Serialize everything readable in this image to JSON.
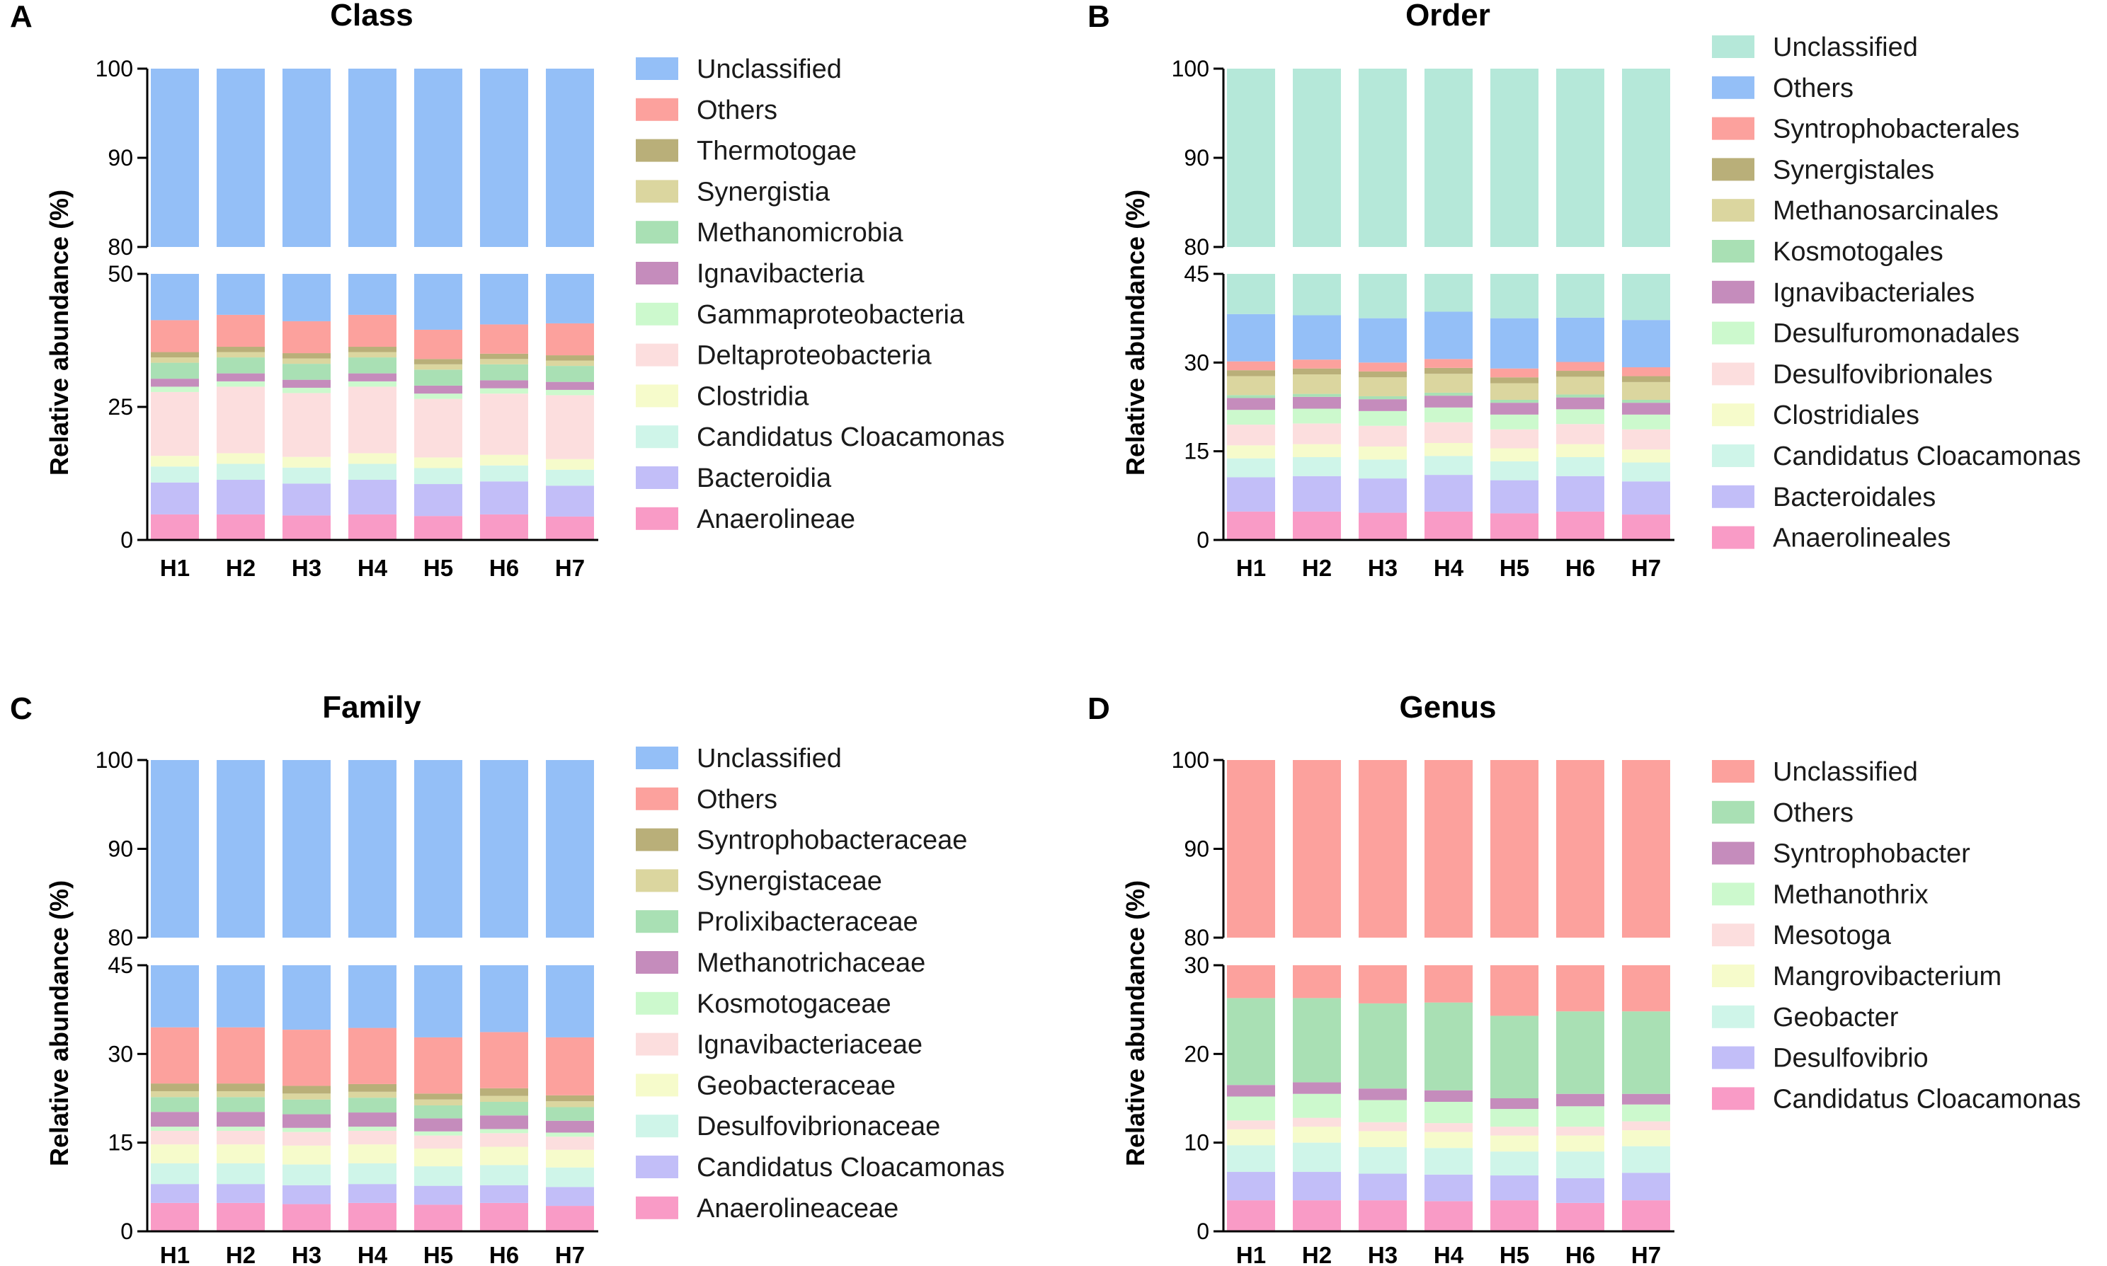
{
  "chart_data": [
    {
      "type": "bar",
      "stacked": true,
      "panel_label": "A",
      "title": "Class",
      "xlabel": "",
      "ylabel": "Relative abundance (%)",
      "broken_axis": true,
      "lower_range": [
        0,
        50
      ],
      "lower_ticks": [
        0,
        25,
        50
      ],
      "upper_range": [
        80,
        100
      ],
      "upper_ticks": [
        80,
        90,
        100
      ],
      "categories": [
        "H1",
        "H2",
        "H3",
        "H4",
        "H5",
        "H6",
        "H7"
      ],
      "series": [
        {
          "name": "Anaerolineae",
          "color": "#f99bc6",
          "values": [
            4.8,
            4.8,
            4.6,
            4.8,
            4.5,
            4.8,
            4.4
          ]
        },
        {
          "name": "Bacteroidia",
          "color": "#c2bef8",
          "values": [
            6.0,
            6.5,
            6.0,
            6.5,
            6.0,
            6.2,
            5.8
          ]
        },
        {
          "name": "Candidatus Cloacamonas",
          "color": "#cff5e9",
          "values": [
            3.0,
            3.0,
            3.0,
            3.0,
            3.0,
            3.0,
            3.0
          ]
        },
        {
          "name": "Clostridia",
          "color": "#f6fbcb",
          "values": [
            2.0,
            2.0,
            2.0,
            2.0,
            2.0,
            2.0,
            2.0
          ]
        },
        {
          "name": "Deltaproteobacteria",
          "color": "#fcdede",
          "values": [
            12.0,
            12.5,
            12.0,
            12.5,
            11.0,
            11.5,
            12.0
          ]
        },
        {
          "name": "Gammaproteobacteria",
          "color": "#ccf9cd",
          "values": [
            1.0,
            1.0,
            1.0,
            1.0,
            1.0,
            1.0,
            1.0
          ]
        },
        {
          "name": "Ignavibacteria",
          "color": "#c58cbc",
          "values": [
            1.5,
            1.5,
            1.5,
            1.5,
            1.5,
            1.5,
            1.5
          ]
        },
        {
          "name": "Methanomicrobia",
          "color": "#a9e0b4",
          "values": [
            3.0,
            3.0,
            3.0,
            3.0,
            3.0,
            3.0,
            3.0
          ]
        },
        {
          "name": "Synergistia",
          "color": "#dbd69f",
          "values": [
            1.0,
            1.0,
            1.0,
            1.0,
            1.0,
            1.0,
            1.0
          ]
        },
        {
          "name": "Thermotogae",
          "color": "#b9af79",
          "values": [
            1.0,
            1.0,
            1.0,
            1.0,
            1.0,
            1.0,
            1.0
          ]
        },
        {
          "name": "Others",
          "color": "#fca19d",
          "values": [
            6.0,
            6.0,
            6.0,
            6.0,
            5.5,
            5.5,
            6.0
          ]
        },
        {
          "name": "Unclassified",
          "color": "#94bff7",
          "values": [
            58.7,
            57.7,
            58.9,
            57.7,
            60.5,
            60.0,
            60.3
          ]
        }
      ],
      "legend_order": [
        "Unclassified",
        "Others",
        "Thermotogae",
        "Synergistia",
        "Methanomicrobia",
        "Ignavibacteria",
        "Gammaproteobacteria",
        "Deltaproteobacteria",
        "Clostridia",
        "Candidatus Cloacamonas",
        "Bacteroidia",
        "Anaerolineae"
      ],
      "legend_position": "right"
    },
    {
      "type": "bar",
      "stacked": true,
      "panel_label": "B",
      "title": "Order",
      "xlabel": "",
      "ylabel": "Relative abundance (%)",
      "broken_axis": true,
      "lower_range": [
        0,
        45
      ],
      "lower_ticks": [
        0,
        15,
        30,
        45
      ],
      "upper_range": [
        80,
        100
      ],
      "upper_ticks": [
        80,
        90,
        100
      ],
      "categories": [
        "H1",
        "H2",
        "H3",
        "H4",
        "H5",
        "H6",
        "H7"
      ],
      "series": [
        {
          "name": "Anaerolineales",
          "color": "#f99bc6",
          "values": [
            4.8,
            4.8,
            4.6,
            4.8,
            4.5,
            4.8,
            4.3
          ]
        },
        {
          "name": "Bacteroidales",
          "color": "#c2bef8",
          "values": [
            5.8,
            6.0,
            5.8,
            6.2,
            5.6,
            6.0,
            5.6
          ]
        },
        {
          "name": "Candidatus Cloacamonas",
          "color": "#cff5e9",
          "values": [
            3.2,
            3.2,
            3.2,
            3.2,
            3.2,
            3.2,
            3.2
          ]
        },
        {
          "name": "Clostridiales",
          "color": "#f6fbcb",
          "values": [
            2.2,
            2.2,
            2.2,
            2.2,
            2.2,
            2.2,
            2.2
          ]
        },
        {
          "name": "Desulfovibrionales",
          "color": "#fcdede",
          "values": [
            3.5,
            3.5,
            3.5,
            3.5,
            3.2,
            3.4,
            3.4
          ]
        },
        {
          "name": "Desulfuromonadales",
          "color": "#ccf9cd",
          "values": [
            2.5,
            2.5,
            2.5,
            2.5,
            2.5,
            2.5,
            2.5
          ]
        },
        {
          "name": "Ignavibacteriales",
          "color": "#c58cbc",
          "values": [
            2.0,
            2.0,
            2.0,
            2.0,
            2.0,
            2.0,
            2.0
          ]
        },
        {
          "name": "Kosmotogales",
          "color": "#a9e0b4",
          "values": [
            0.5,
            0.5,
            0.5,
            0.5,
            0.5,
            0.5,
            0.5
          ]
        },
        {
          "name": "Methanosarcinales",
          "color": "#dbd69f",
          "values": [
            3.2,
            3.3,
            3.2,
            3.2,
            2.8,
            3.0,
            3.0
          ]
        },
        {
          "name": "Synergistales",
          "color": "#b9af79",
          "values": [
            1.0,
            1.0,
            1.0,
            1.0,
            1.0,
            1.0,
            1.0
          ]
        },
        {
          "name": "Syntrophobacterales",
          "color": "#fca19d",
          "values": [
            1.5,
            1.5,
            1.5,
            1.5,
            1.5,
            1.5,
            1.5
          ]
        },
        {
          "name": "Others",
          "color": "#94bff7",
          "values": [
            8.0,
            7.5,
            7.5,
            8.0,
            8.5,
            7.5,
            8.0
          ]
        },
        {
          "name": "Unclassified",
          "color": "#b5e8d9",
          "values": [
            61.8,
            62.0,
            62.6,
            61.4,
            62.5,
            62.4,
            62.8
          ]
        }
      ],
      "legend_order": [
        "Unclassified",
        "Others",
        "Syntrophobacterales",
        "Synergistales",
        "Methanosarcinales",
        "Kosmotogales",
        "Ignavibacteriales",
        "Desulfuromonadales",
        "Desulfovibrionales",
        "Clostridiales",
        "Candidatus Cloacamonas",
        "Bacteroidales",
        "Anaerolineales"
      ],
      "legend_position": "right"
    },
    {
      "type": "bar",
      "stacked": true,
      "panel_label": "C",
      "title": "Family",
      "xlabel": "",
      "ylabel": "Relative abundance (%)",
      "broken_axis": true,
      "lower_range": [
        0,
        45
      ],
      "lower_ticks": [
        0,
        15,
        30,
        45
      ],
      "upper_range": [
        80,
        100
      ],
      "upper_ticks": [
        80,
        90,
        100
      ],
      "categories": [
        "H1",
        "H2",
        "H3",
        "H4",
        "H5",
        "H6",
        "H7"
      ],
      "series": [
        {
          "name": "Anaerolineaceae",
          "color": "#f99bc6",
          "values": [
            4.8,
            4.8,
            4.6,
            4.8,
            4.5,
            4.8,
            4.3
          ]
        },
        {
          "name": "Candidatus Cloacamonas",
          "color": "#c2bef8",
          "values": [
            3.2,
            3.2,
            3.2,
            3.2,
            3.2,
            3.0,
            3.2
          ]
        },
        {
          "name": "Desulfovibrionaceae",
          "color": "#cff5e9",
          "values": [
            3.5,
            3.5,
            3.5,
            3.5,
            3.3,
            3.4,
            3.3
          ]
        },
        {
          "name": "Geobacteraceae",
          "color": "#f6fbcb",
          "values": [
            3.2,
            3.2,
            3.2,
            3.2,
            3.0,
            3.1,
            3.0
          ]
        },
        {
          "name": "Ignavibacteriaceae",
          "color": "#fcdede",
          "values": [
            2.3,
            2.3,
            2.3,
            2.3,
            2.2,
            2.3,
            2.2
          ]
        },
        {
          "name": "Kosmotogaceae",
          "color": "#ccf9cd",
          "values": [
            0.7,
            0.7,
            0.7,
            0.7,
            0.7,
            0.7,
            0.7
          ]
        },
        {
          "name": "Methanotrichaceae",
          "color": "#c58cbc",
          "values": [
            2.5,
            2.5,
            2.3,
            2.4,
            2.2,
            2.3,
            2.0
          ]
        },
        {
          "name": "Prolixibacteraceae",
          "color": "#a9e0b4",
          "values": [
            2.5,
            2.5,
            2.5,
            2.5,
            2.2,
            2.3,
            2.3
          ]
        },
        {
          "name": "Synergistaceae",
          "color": "#dbd69f",
          "values": [
            1.0,
            1.0,
            1.0,
            1.0,
            1.0,
            1.0,
            1.0
          ]
        },
        {
          "name": "Syntrophobacteraceae",
          "color": "#b9af79",
          "values": [
            1.3,
            1.3,
            1.3,
            1.3,
            1.0,
            1.3,
            1.0
          ]
        },
        {
          "name": "Others",
          "color": "#fca19d",
          "values": [
            9.5,
            9.5,
            9.5,
            9.5,
            9.5,
            9.5,
            9.8
          ]
        },
        {
          "name": "Unclassified",
          "color": "#94bff7",
          "values": [
            65.5,
            65.5,
            65.9,
            65.6,
            67.2,
            66.3,
            67.2
          ]
        }
      ],
      "legend_order": [
        "Unclassified",
        "Others",
        "Syntrophobacteraceae",
        "Synergistaceae",
        "Prolixibacteraceae",
        "Methanotrichaceae",
        "Kosmotogaceae",
        "Ignavibacteriaceae",
        "Geobacteraceae",
        "Desulfovibrionaceae",
        "Candidatus Cloacamonas",
        "Anaerolineaceae"
      ],
      "legend_position": "right"
    },
    {
      "type": "bar",
      "stacked": true,
      "panel_label": "D",
      "title": "Genus",
      "xlabel": "",
      "ylabel": "Relative abundance (%)",
      "broken_axis": true,
      "lower_range": [
        0,
        30
      ],
      "lower_ticks": [
        0,
        10,
        20,
        30
      ],
      "upper_range": [
        80,
        100
      ],
      "upper_ticks": [
        80,
        90,
        100
      ],
      "categories": [
        "H1",
        "H2",
        "H3",
        "H4",
        "H5",
        "H6",
        "H7"
      ],
      "series": [
        {
          "name": "Candidatus Cloacamonas",
          "color": "#f99bc6",
          "values": [
            3.5,
            3.5,
            3.5,
            3.4,
            3.5,
            3.2,
            3.5
          ]
        },
        {
          "name": "Desulfovibrio",
          "color": "#c2bef8",
          "values": [
            3.2,
            3.2,
            3.0,
            3.0,
            2.8,
            2.8,
            3.1
          ]
        },
        {
          "name": "Geobacter",
          "color": "#cff5e9",
          "values": [
            3.0,
            3.3,
            3.0,
            3.0,
            2.7,
            3.0,
            3.0
          ]
        },
        {
          "name": "Mangrovibacterium",
          "color": "#f6fbcb",
          "values": [
            1.8,
            1.8,
            1.8,
            1.8,
            1.8,
            1.8,
            1.8
          ]
        },
        {
          "name": "Mesotoga",
          "color": "#fcdede",
          "values": [
            1.0,
            1.0,
            1.0,
            1.0,
            1.0,
            1.0,
            1.0
          ]
        },
        {
          "name": "Methanothrix",
          "color": "#ccf9cd",
          "values": [
            2.7,
            2.7,
            2.5,
            2.4,
            2.0,
            2.3,
            1.9
          ]
        },
        {
          "name": "Syntrophobacter",
          "color": "#c58cbc",
          "values": [
            1.3,
            1.3,
            1.3,
            1.3,
            1.2,
            1.4,
            1.2
          ]
        },
        {
          "name": "Others",
          "color": "#a9e0b4",
          "values": [
            9.8,
            9.5,
            9.6,
            9.9,
            9.3,
            9.3,
            9.3
          ]
        },
        {
          "name": "Unclassified",
          "color": "#fca19d",
          "values": [
            73.7,
            73.7,
            74.3,
            74.2,
            75.7,
            75.2,
            75.2
          ]
        }
      ],
      "legend_order": [
        "Unclassified",
        "Others",
        "Syntrophobacter",
        "Methanothrix",
        "Mesotoga",
        "Mangrovibacterium",
        "Geobacter",
        "Desulfovibrio",
        "Candidatus Cloacamonas"
      ],
      "legend_position": "right"
    }
  ]
}
